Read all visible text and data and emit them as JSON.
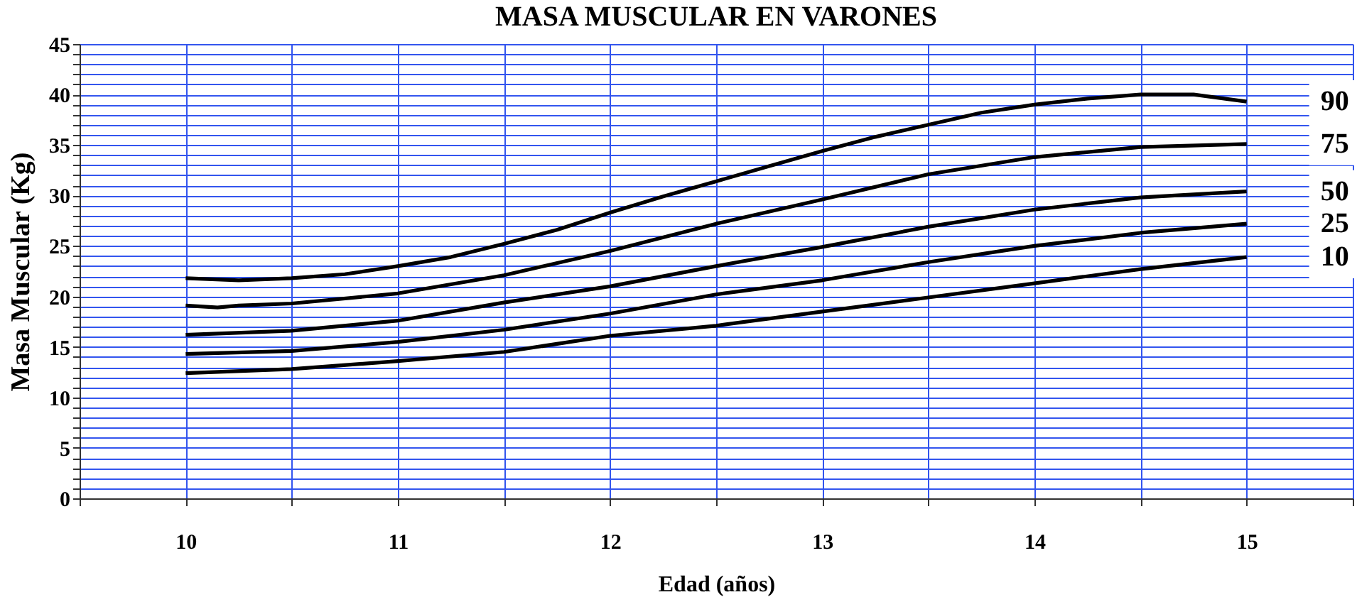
{
  "chart_data": {
    "type": "line",
    "title": "MASA MUSCULAR EN VARONES",
    "xlabel": "Edad (años)",
    "ylabel": "Masa Muscular (Kg)",
    "xlim": [
      9.5,
      15.5
    ],
    "xticks": [
      {
        "value": 9.5,
        "label": null
      },
      10,
      {
        "value": 10.5,
        "label": null
      },
      11,
      {
        "value": 11.5,
        "label": null
      },
      12,
      {
        "value": 12.5,
        "label": null
      },
      13,
      {
        "value": 13.5,
        "label": null
      },
      14,
      {
        "value": 14.5,
        "label": null
      },
      15,
      {
        "value": 15.5,
        "label": null
      }
    ],
    "ylim": [
      0,
      45
    ],
    "yticks": [
      0,
      {
        "value": 1,
        "label": null
      },
      {
        "value": 2,
        "label": null
      },
      {
        "value": 3,
        "label": null
      },
      {
        "value": 4,
        "label": null
      },
      5,
      {
        "value": 6,
        "label": null
      },
      {
        "value": 7,
        "label": null
      },
      {
        "value": 8,
        "label": null
      },
      {
        "value": 9,
        "label": null
      },
      10,
      {
        "value": 11,
        "label": null
      },
      {
        "value": 12,
        "label": null
      },
      {
        "value": 13,
        "label": null
      },
      {
        "value": 14,
        "label": null
      },
      15,
      {
        "value": 16,
        "label": null
      },
      {
        "value": 17,
        "label": null
      },
      {
        "value": 18,
        "label": null
      },
      {
        "value": 19,
        "label": null
      },
      20,
      {
        "value": 21,
        "label": null
      },
      {
        "value": 22,
        "label": null
      },
      {
        "value": 23,
        "label": null
      },
      {
        "value": 24,
        "label": null
      },
      25,
      {
        "value": 26,
        "label": null
      },
      {
        "value": 27,
        "label": null
      },
      {
        "value": 28,
        "label": null
      },
      {
        "value": 29,
        "label": null
      },
      30,
      {
        "value": 31,
        "label": null
      },
      {
        "value": 32,
        "label": null
      },
      {
        "value": 33,
        "label": null
      },
      {
        "value": 34,
        "label": null
      },
      35,
      {
        "value": 36,
        "label": null
      },
      {
        "value": 37,
        "label": null
      },
      {
        "value": 38,
        "label": null
      },
      {
        "value": 39,
        "label": null
      },
      40,
      {
        "value": 41,
        "label": null
      },
      {
        "value": 42,
        "label": null
      },
      {
        "value": 43,
        "label": null
      },
      {
        "value": 44,
        "label": null
      },
      45
    ],
    "grid": true,
    "legend": false,
    "marker": "none",
    "line_style": "solid",
    "series": [
      {
        "name": "90",
        "color": "#000000",
        "x": [
          10,
          10.25,
          10.5,
          10.75,
          11,
          11.25,
          11.5,
          11.75,
          12,
          12.25,
          12.5,
          12.75,
          13,
          13.25,
          13.5,
          13.75,
          14,
          14.25,
          14.5,
          14.75,
          15
        ],
        "values": [
          21.8,
          21.6,
          21.8,
          22.2,
          23.0,
          23.9,
          25.2,
          26.6,
          28.3,
          29.9,
          31.4,
          32.9,
          34.4,
          35.8,
          37.0,
          38.2,
          39.0,
          39.6,
          40.0,
          40.0,
          39.3
        ]
      },
      {
        "name": "75",
        "color": "#000000",
        "x": [
          10,
          10.15,
          10.25,
          10.5,
          11,
          11.5,
          12,
          12.5,
          13,
          13.5,
          14,
          14.5,
          15
        ],
        "values": [
          19.1,
          18.9,
          19.1,
          19.3,
          20.3,
          22.1,
          24.5,
          27.2,
          29.6,
          32.1,
          33.8,
          34.8,
          35.1
        ]
      },
      {
        "name": "50",
        "color": "#000000",
        "x": [
          10,
          10.5,
          11,
          11.5,
          12,
          12.5,
          13,
          13.5,
          14,
          14.5,
          15
        ],
        "values": [
          16.2,
          16.6,
          17.6,
          19.4,
          21.0,
          23.0,
          24.9,
          26.9,
          28.6,
          29.8,
          30.4
        ]
      },
      {
        "name": "25",
        "color": "#000000",
        "x": [
          10,
          10.5,
          11,
          11.5,
          12,
          12.5,
          13,
          13.5,
          14,
          14.5,
          15
        ],
        "values": [
          14.3,
          14.6,
          15.5,
          16.7,
          18.3,
          20.2,
          21.6,
          23.4,
          25.0,
          26.3,
          27.2
        ]
      },
      {
        "name": "10",
        "color": "#000000",
        "x": [
          10,
          10.5,
          11,
          11.5,
          12,
          12.5,
          13,
          13.5,
          14,
          14.5,
          15
        ],
        "values": [
          12.4,
          12.8,
          13.6,
          14.5,
          16.1,
          17.1,
          18.5,
          19.9,
          21.3,
          22.7,
          23.9
        ]
      }
    ]
  }
}
